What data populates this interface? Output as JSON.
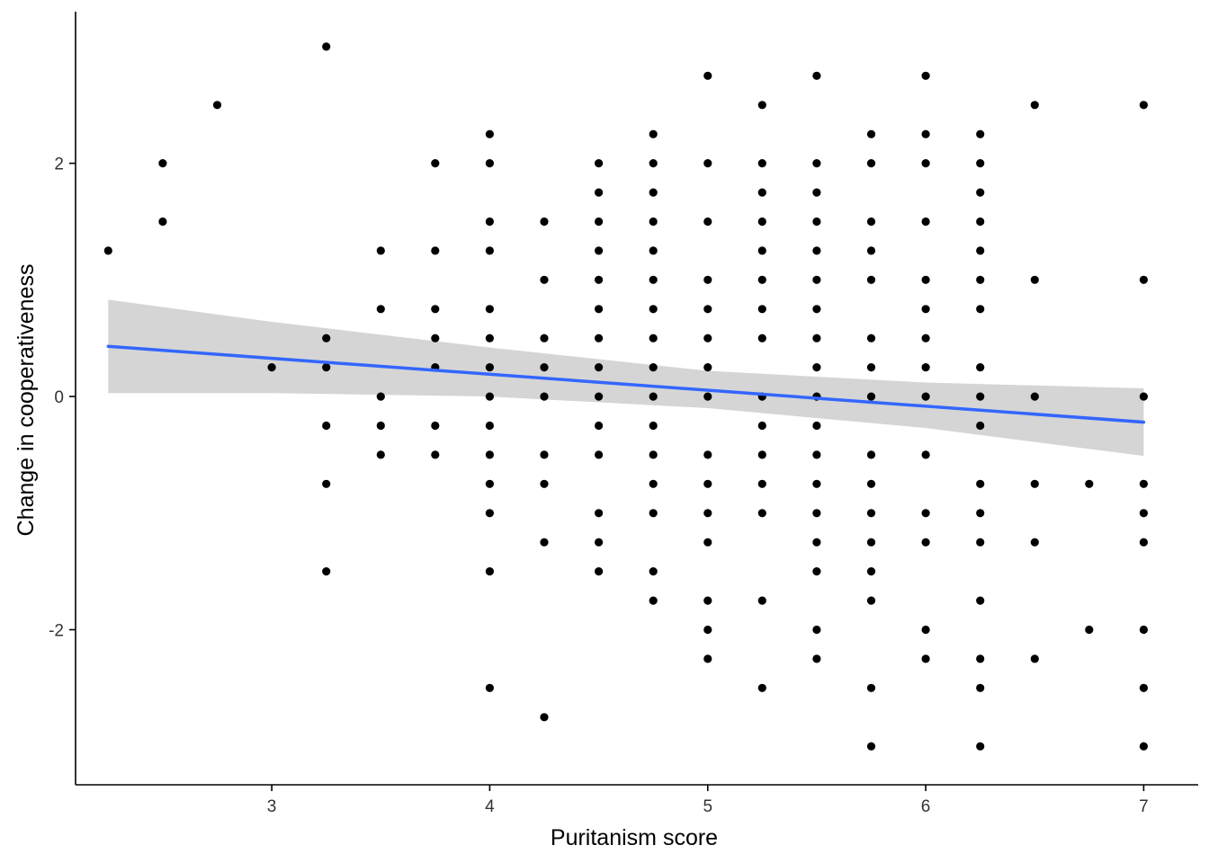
{
  "chart_data": {
    "type": "scatter",
    "title": "",
    "xlabel": "Puritanism score",
    "ylabel": "Change in cooperativeness",
    "xlim": [
      2.1,
      7.25
    ],
    "ylim": [
      -3.33,
      3.3
    ],
    "x_ticks": [
      3,
      4,
      5,
      6,
      7
    ],
    "y_ticks": [
      -2,
      0,
      2
    ],
    "grid": false,
    "legend": "none",
    "colors": {
      "points": "#000000",
      "trend_line": "#3366FF",
      "confidence_band": "#D3D3D3",
      "axis": "#000000"
    },
    "points": [
      [
        2.25,
        1.25
      ],
      [
        2.5,
        2
      ],
      [
        2.5,
        1.5
      ],
      [
        2.75,
        2.5
      ],
      [
        3,
        0.25
      ],
      [
        3.25,
        3
      ],
      [
        3.25,
        0.5
      ],
      [
        3.25,
        0.25
      ],
      [
        3.25,
        -0.25
      ],
      [
        3.25,
        -0.75
      ],
      [
        3.25,
        -1.5
      ],
      [
        3.5,
        1.25
      ],
      [
        3.5,
        0.75
      ],
      [
        3.5,
        0
      ],
      [
        3.5,
        -0.25
      ],
      [
        3.5,
        -0.5
      ],
      [
        3.75,
        2
      ],
      [
        3.75,
        1.25
      ],
      [
        3.75,
        0.75
      ],
      [
        3.75,
        0.5
      ],
      [
        3.75,
        0.25
      ],
      [
        3.75,
        -0.25
      ],
      [
        3.75,
        -0.5
      ],
      [
        4,
        2.25
      ],
      [
        4,
        2
      ],
      [
        4,
        1.5
      ],
      [
        4,
        1.25
      ],
      [
        4,
        0.75
      ],
      [
        4,
        0.5
      ],
      [
        4,
        0.25
      ],
      [
        4,
        0
      ],
      [
        4,
        -0.25
      ],
      [
        4,
        -0.5
      ],
      [
        4,
        -0.75
      ],
      [
        4,
        -1
      ],
      [
        4,
        -1.5
      ],
      [
        4,
        -2.5
      ],
      [
        4.25,
        1.5
      ],
      [
        4.25,
        1
      ],
      [
        4.25,
        0.5
      ],
      [
        4.25,
        0.25
      ],
      [
        4.25,
        0
      ],
      [
        4.25,
        -0.5
      ],
      [
        4.25,
        -0.75
      ],
      [
        4.25,
        -1.25
      ],
      [
        4.25,
        -2.75
      ],
      [
        4.5,
        2
      ],
      [
        4.5,
        1.75
      ],
      [
        4.5,
        1.5
      ],
      [
        4.5,
        1.25
      ],
      [
        4.5,
        1
      ],
      [
        4.5,
        0.75
      ],
      [
        4.5,
        0.5
      ],
      [
        4.5,
        0.25
      ],
      [
        4.5,
        0
      ],
      [
        4.5,
        -0.25
      ],
      [
        4.5,
        -0.5
      ],
      [
        4.5,
        -1
      ],
      [
        4.5,
        -1.25
      ],
      [
        4.5,
        -1.5
      ],
      [
        4.75,
        2.25
      ],
      [
        4.75,
        2
      ],
      [
        4.75,
        1.75
      ],
      [
        4.75,
        1.5
      ],
      [
        4.75,
        1.25
      ],
      [
        4.75,
        1
      ],
      [
        4.75,
        0.75
      ],
      [
        4.75,
        0.5
      ],
      [
        4.75,
        0.25
      ],
      [
        4.75,
        0
      ],
      [
        4.75,
        -0.25
      ],
      [
        4.75,
        -0.5
      ],
      [
        4.75,
        -0.75
      ],
      [
        4.75,
        -1
      ],
      [
        4.75,
        -1.5
      ],
      [
        4.75,
        -1.75
      ],
      [
        5,
        2.75
      ],
      [
        5,
        2
      ],
      [
        5,
        1.5
      ],
      [
        5,
        1
      ],
      [
        5,
        0.75
      ],
      [
        5,
        0.5
      ],
      [
        5,
        0.25
      ],
      [
        5,
        0
      ],
      [
        5,
        -0.5
      ],
      [
        5,
        -0.75
      ],
      [
        5,
        -1
      ],
      [
        5,
        -1.25
      ],
      [
        5,
        -1.75
      ],
      [
        5,
        -2
      ],
      [
        5,
        -2.25
      ],
      [
        5.25,
        2.5
      ],
      [
        5.25,
        2
      ],
      [
        5.25,
        1.75
      ],
      [
        5.25,
        1.5
      ],
      [
        5.25,
        1.25
      ],
      [
        5.25,
        1
      ],
      [
        5.25,
        0.75
      ],
      [
        5.25,
        0.5
      ],
      [
        5.25,
        0
      ],
      [
        5.25,
        -0.25
      ],
      [
        5.25,
        -0.5
      ],
      [
        5.25,
        -0.75
      ],
      [
        5.25,
        -1
      ],
      [
        5.25,
        -1.75
      ],
      [
        5.25,
        -2.5
      ],
      [
        5.5,
        2.75
      ],
      [
        5.5,
        2
      ],
      [
        5.5,
        1.75
      ],
      [
        5.5,
        1.5
      ],
      [
        5.5,
        1.25
      ],
      [
        5.5,
        1
      ],
      [
        5.5,
        0.75
      ],
      [
        5.5,
        0.5
      ],
      [
        5.5,
        0.25
      ],
      [
        5.5,
        0
      ],
      [
        5.5,
        -0.25
      ],
      [
        5.5,
        -0.5
      ],
      [
        5.5,
        -0.75
      ],
      [
        5.5,
        -1
      ],
      [
        5.5,
        -1.25
      ],
      [
        5.5,
        -1.5
      ],
      [
        5.5,
        -2
      ],
      [
        5.5,
        -2.25
      ],
      [
        5.75,
        2.25
      ],
      [
        5.75,
        2
      ],
      [
        5.75,
        1.5
      ],
      [
        5.75,
        1.25
      ],
      [
        5.75,
        1
      ],
      [
        5.75,
        0.5
      ],
      [
        5.75,
        0.25
      ],
      [
        5.75,
        0
      ],
      [
        5.75,
        -0.5
      ],
      [
        5.75,
        -0.75
      ],
      [
        5.75,
        -1
      ],
      [
        5.75,
        -1.25
      ],
      [
        5.75,
        -1.5
      ],
      [
        5.75,
        -1.75
      ],
      [
        5.75,
        -2.5
      ],
      [
        5.75,
        -3
      ],
      [
        6,
        2.75
      ],
      [
        6,
        2.25
      ],
      [
        6,
        2
      ],
      [
        6,
        1.5
      ],
      [
        6,
        1
      ],
      [
        6,
        0.75
      ],
      [
        6,
        0.5
      ],
      [
        6,
        0.25
      ],
      [
        6,
        0
      ],
      [
        6,
        -0.5
      ],
      [
        6,
        -1
      ],
      [
        6,
        -1.25
      ],
      [
        6,
        -2
      ],
      [
        6,
        -2.25
      ],
      [
        6.25,
        2.25
      ],
      [
        6.25,
        2
      ],
      [
        6.25,
        1.75
      ],
      [
        6.25,
        1.5
      ],
      [
        6.25,
        1.25
      ],
      [
        6.25,
        1
      ],
      [
        6.25,
        0.75
      ],
      [
        6.25,
        0.25
      ],
      [
        6.25,
        0
      ],
      [
        6.25,
        -0.25
      ],
      [
        6.25,
        -0.75
      ],
      [
        6.25,
        -1
      ],
      [
        6.25,
        -1.25
      ],
      [
        6.25,
        -1.75
      ],
      [
        6.25,
        -2.25
      ],
      [
        6.25,
        -2.5
      ],
      [
        6.25,
        -3
      ],
      [
        6.5,
        2.5
      ],
      [
        6.5,
        1
      ],
      [
        6.5,
        0
      ],
      [
        6.5,
        -0.75
      ],
      [
        6.5,
        -1.25
      ],
      [
        6.5,
        -2.25
      ],
      [
        6.75,
        -0.75
      ],
      [
        6.75,
        -2
      ],
      [
        7,
        2.5
      ],
      [
        7,
        1
      ],
      [
        7,
        0
      ],
      [
        7,
        -0.75
      ],
      [
        7,
        -1
      ],
      [
        7,
        -1.25
      ],
      [
        7,
        -2
      ],
      [
        7,
        -2.5
      ],
      [
        7,
        -3
      ]
    ],
    "trend_line": {
      "method": "linear",
      "x": [
        2.25,
        7
      ],
      "y": [
        0.43,
        -0.22
      ]
    },
    "confidence_band": {
      "x": [
        2.25,
        3,
        4,
        5,
        6,
        7
      ],
      "upper": [
        0.83,
        0.64,
        0.42,
        0.22,
        0.12,
        0.07
      ],
      "lower": [
        0.03,
        0.03,
        0,
        -0.1,
        -0.27,
        -0.51
      ]
    }
  }
}
